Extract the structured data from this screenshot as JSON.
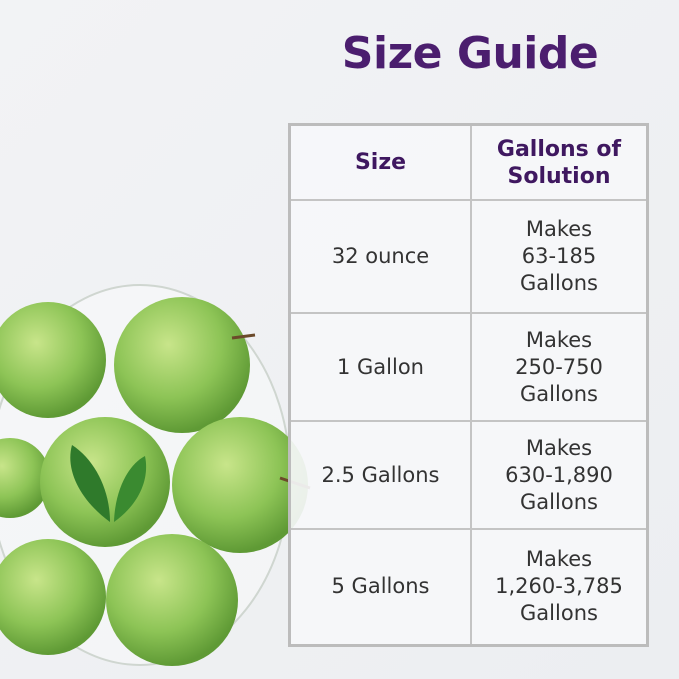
{
  "title": "Size Guide",
  "table": {
    "headers": [
      "Size",
      "Gallons of\nSolution"
    ],
    "rows": [
      {
        "size": "32 ounce",
        "makes": "Makes",
        "range": "63-185",
        "unit": "Gallons"
      },
      {
        "size": "1 Gallon",
        "makes": "Makes",
        "range": "250-750",
        "unit": "Gallons"
      },
      {
        "size": "2.5 Gallons",
        "makes": "Makes",
        "range": "630-1,890",
        "unit": "Gallons"
      },
      {
        "size": "5 Gallons",
        "makes": "Makes",
        "range": "1,260-3,785",
        "unit": "Gallons"
      }
    ]
  },
  "colors": {
    "title": "#4b1e6e",
    "apple": "#8dc456",
    "border": "#bcbcbc"
  }
}
